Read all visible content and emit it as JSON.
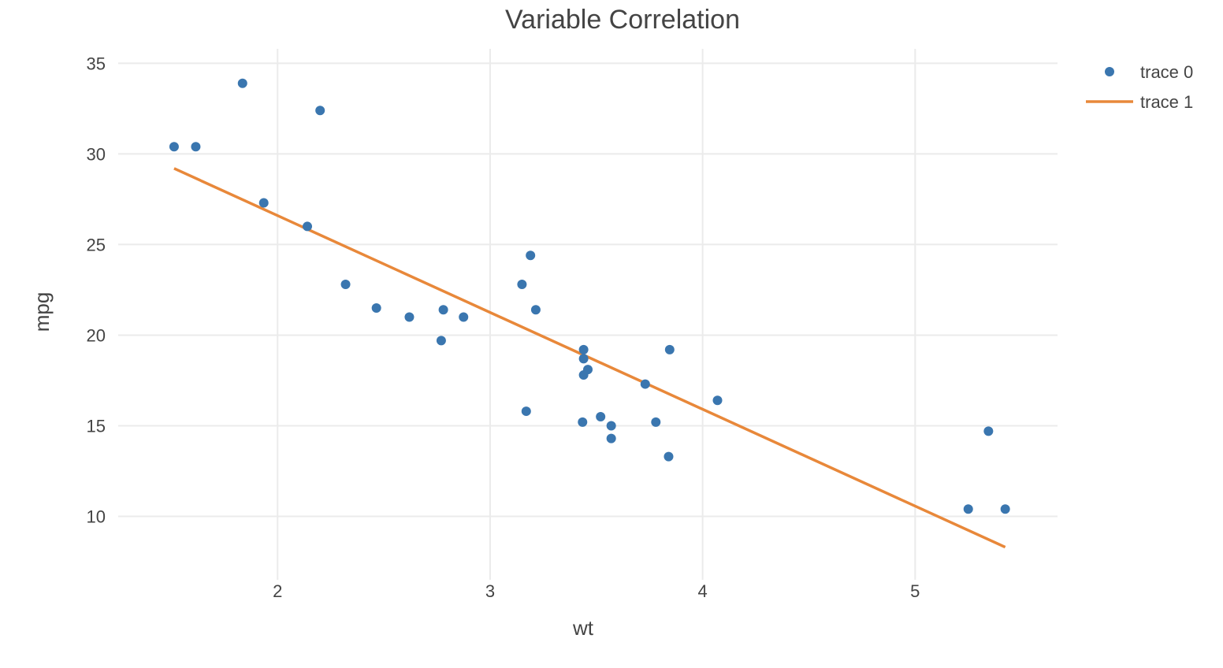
{
  "chart_data": {
    "type": "scatter",
    "title": "Variable Correlation",
    "xlabel": "wt",
    "ylabel": "mpg",
    "xlim": [
      1.25,
      5.67
    ],
    "ylim": [
      6.5,
      35.8
    ],
    "x_ticks": [
      2,
      3,
      4,
      5
    ],
    "y_ticks": [
      10,
      15,
      20,
      25,
      30,
      35
    ],
    "grid": true,
    "legend": "top-right",
    "series": [
      {
        "name": "trace 0",
        "mode": "markers",
        "color": "#3a76af",
        "x": [
          1.513,
          1.615,
          1.835,
          1.935,
          2.14,
          2.2,
          2.32,
          2.465,
          2.62,
          2.77,
          2.78,
          2.875,
          3.15,
          3.17,
          3.19,
          3.215,
          3.435,
          3.44,
          3.44,
          3.44,
          3.46,
          3.52,
          3.57,
          3.57,
          3.73,
          3.78,
          3.84,
          3.845,
          4.07,
          5.25,
          5.345,
          5.424
        ],
        "y": [
          30.4,
          30.4,
          33.9,
          27.3,
          26.0,
          32.4,
          22.8,
          21.5,
          21.0,
          19.7,
          21.4,
          21.0,
          22.8,
          15.8,
          24.4,
          21.4,
          15.2,
          19.2,
          18.7,
          17.8,
          18.1,
          15.5,
          15.0,
          14.3,
          17.3,
          15.2,
          13.3,
          19.2,
          16.4,
          10.4,
          14.7,
          10.4
        ]
      },
      {
        "name": "trace 1",
        "mode": "lines",
        "color": "#e8883a",
        "x": [
          1.513,
          5.424
        ],
        "y": [
          29.2,
          8.3
        ]
      }
    ]
  }
}
